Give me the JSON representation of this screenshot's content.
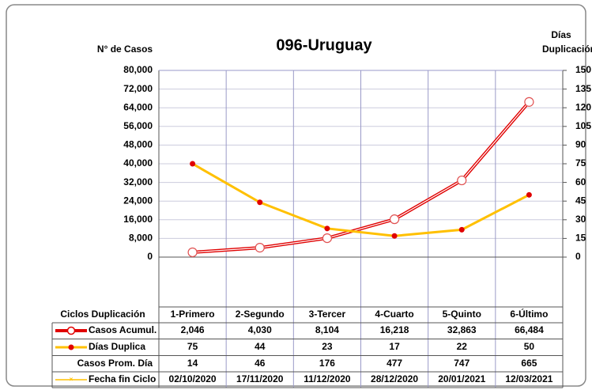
{
  "chart_data": {
    "type": "line",
    "title": "096-Uruguay",
    "y_label": "N° de Casos",
    "y2_label": [
      "Días",
      "Duplicación"
    ],
    "table_header": "Ciclos Duplicación",
    "categories": [
      "1-Primero",
      "2-Segundo",
      "3-Tercer",
      "4-Cuarto",
      "5-Quinto",
      "6-Último"
    ],
    "ylim": [
      0,
      80000
    ],
    "yticks": [
      {
        "value": 0,
        "label": "0"
      },
      {
        "value": 8000,
        "label": "8,000"
      },
      {
        "value": 16000,
        "label": "16,000"
      },
      {
        "value": 24000,
        "label": "24,000"
      },
      {
        "value": 32000,
        "label": "32,000"
      },
      {
        "value": 40000,
        "label": "40,000"
      },
      {
        "value": 48000,
        "label": "48,000"
      },
      {
        "value": 56000,
        "label": "56,000"
      },
      {
        "value": 64000,
        "label": "64,000"
      },
      {
        "value": 72000,
        "label": "72,000"
      },
      {
        "value": 80000,
        "label": "80,000"
      }
    ],
    "y2lim": [
      0,
      150
    ],
    "y2ticks": [
      0,
      15,
      30,
      45,
      60,
      75,
      90,
      105,
      120,
      135,
      150
    ],
    "series": [
      {
        "name": "Casos Acumul.",
        "color": "#e00000",
        "values": [
          2046,
          4030,
          8104,
          16218,
          32863,
          66484
        ],
        "value_labels": [
          "2,046",
          "4,030",
          "8,104",
          "16,218",
          "32,863",
          "66,484"
        ]
      },
      {
        "name": "Días Duplica",
        "color": "#ffc000",
        "axis": "y2",
        "values": [
          75,
          44,
          23,
          17,
          22,
          50
        ]
      }
    ],
    "table_rows": [
      {
        "name": "Casos Prom. Día",
        "values": [
          14,
          46,
          176,
          477,
          747,
          665
        ]
      },
      {
        "name": "Fecha fin Ciclo",
        "color": "#ffc000",
        "values": [
          "02/10/2020",
          "17/11/2020",
          "11/12/2020",
          "28/12/2020",
          "20/01/2021",
          "12/03/2021"
        ]
      }
    ]
  }
}
